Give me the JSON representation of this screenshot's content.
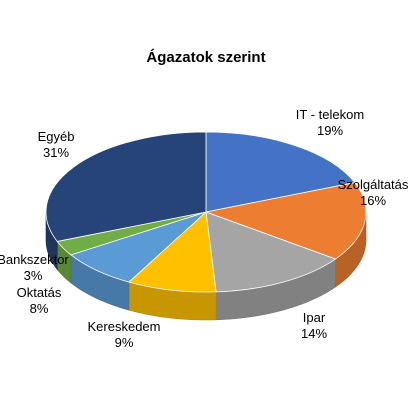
{
  "chart_data": {
    "type": "pie",
    "title": "Ágazatok szerint",
    "slices": [
      {
        "name": "IT - telekom",
        "value": 19,
        "label": "19%",
        "color": "#4472C4"
      },
      {
        "name": "Szolgáltatás",
        "value": 16,
        "label": "16%",
        "color": "#ED7D31"
      },
      {
        "name": "Ipar",
        "value": 14,
        "label": "14%",
        "color": "#A5A5A5"
      },
      {
        "name": "Kereskedem",
        "value": 9,
        "label": "9%",
        "color": "#FFC000"
      },
      {
        "name": "Oktatás",
        "value": 8,
        "label": "8%",
        "color": "#5B9BD5"
      },
      {
        "name": "Bankszektor",
        "value": 3,
        "label": "3%",
        "color": "#70AD47"
      },
      {
        "name": "Egyéb",
        "value": 31,
        "label": "31%",
        "color": "#264478"
      }
    ],
    "legend": "none",
    "style": "3d-pie"
  }
}
